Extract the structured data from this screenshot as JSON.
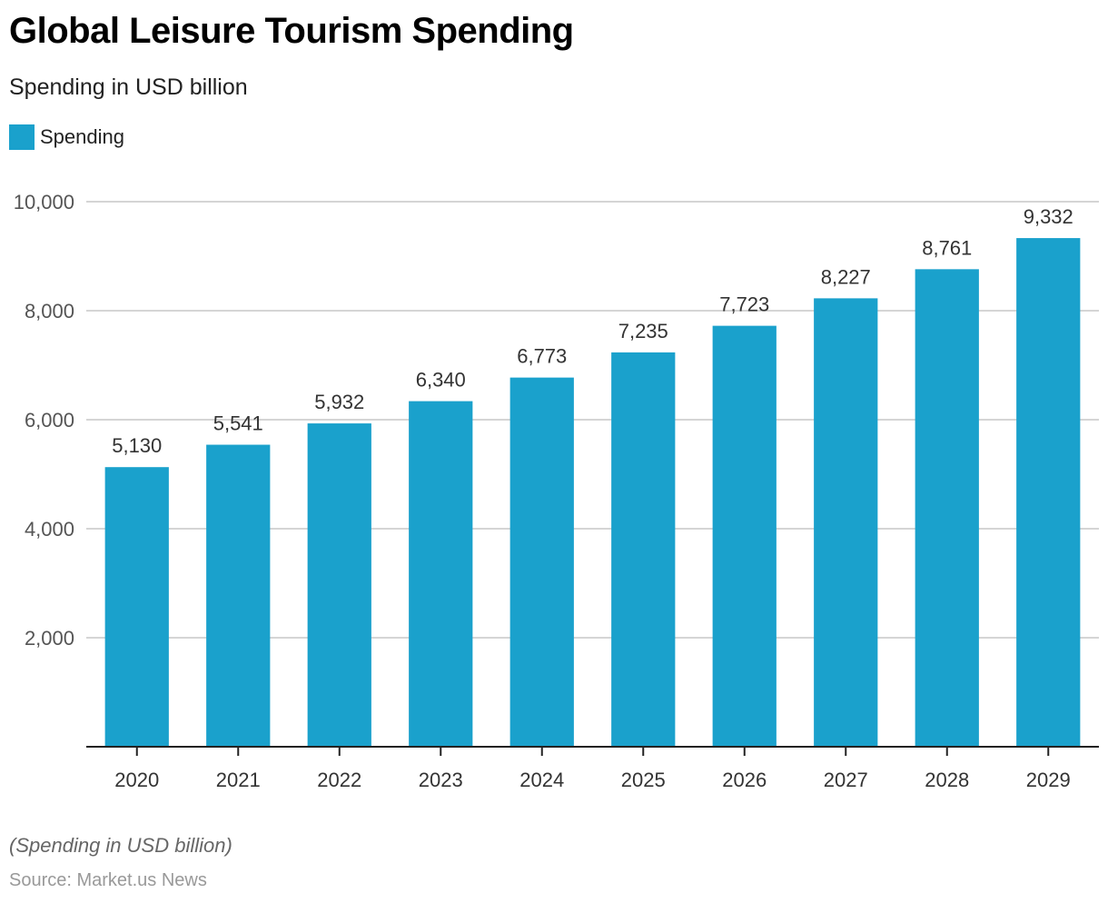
{
  "title": "Global Leisure Tourism Spending",
  "subtitle": "Spending in USD billion",
  "legend": [
    {
      "label": "Spending",
      "color": "#1aa1cc"
    }
  ],
  "footer": {
    "note": "(Spending in USD billion)",
    "source": "Source: Market.us News"
  },
  "chart_data": {
    "type": "bar",
    "title": "Global Leisure Tourism Spending",
    "subtitle": "Spending in USD billion",
    "xlabel": "",
    "ylabel": "",
    "categories": [
      "2020",
      "2021",
      "2022",
      "2023",
      "2024",
      "2025",
      "2026",
      "2027",
      "2028",
      "2029"
    ],
    "series": [
      {
        "name": "Spending",
        "color": "#1aa1cc",
        "values": [
          5130,
          5541,
          5932,
          6340,
          6773,
          7235,
          7723,
          8227,
          8761,
          9332
        ]
      }
    ],
    "data_labels": [
      "5,130",
      "5,541",
      "5,932",
      "6,340",
      "6,773",
      "7,235",
      "7,723",
      "8,227",
      "8,761",
      "9,332"
    ],
    "ylim": [
      0,
      10000
    ],
    "yticks": [
      2000,
      4000,
      6000,
      8000,
      10000
    ],
    "ytick_labels": [
      "2,000",
      "4,000",
      "6,000",
      "8,000",
      "10,000"
    ],
    "grid": true,
    "legend_position": "top-left"
  }
}
